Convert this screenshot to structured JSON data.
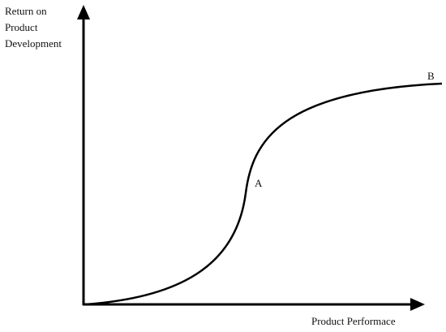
{
  "y_axis_label": [
    "Return on",
    "Product",
    "Development"
  ],
  "x_axis_label": "Product Performace",
  "points": [
    {
      "label": "A"
    },
    {
      "label": "B"
    }
  ]
}
